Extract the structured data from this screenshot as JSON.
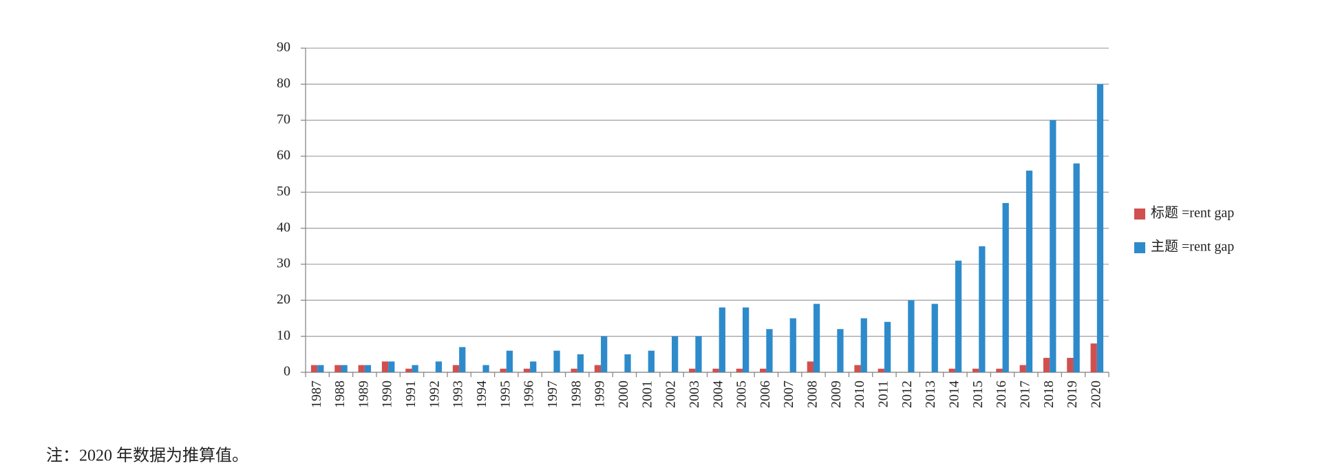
{
  "chart_data": {
    "type": "bar",
    "categories": [
      "1987",
      "1988",
      "1989",
      "1990",
      "1991",
      "1992",
      "1993",
      "1994",
      "1995",
      "1996",
      "1997",
      "1998",
      "1999",
      "2000",
      "2001",
      "2002",
      "2003",
      "2004",
      "2005",
      "2006",
      "2007",
      "2008",
      "2009",
      "2010",
      "2011",
      "2012",
      "2013",
      "2014",
      "2015",
      "2016",
      "2017",
      "2018",
      "2019",
      "2020"
    ],
    "series": [
      {
        "name": "标题 =rent gap",
        "color": "#d0504f",
        "values": [
          2,
          2,
          2,
          3,
          1,
          0,
          2,
          0,
          1,
          1,
          0,
          1,
          2,
          0,
          0,
          0,
          1,
          1,
          1,
          1,
          0,
          3,
          0,
          2,
          1,
          0,
          0,
          1,
          1,
          1,
          2,
          4,
          4,
          8
        ]
      },
      {
        "name": "主题 =rent gap",
        "color": "#2e8bcb",
        "values": [
          2,
          2,
          2,
          3,
          2,
          3,
          7,
          2,
          6,
          3,
          6,
          5,
          10,
          5,
          6,
          10,
          10,
          18,
          18,
          12,
          15,
          19,
          12,
          15,
          14,
          20,
          19,
          31,
          35,
          47,
          56,
          70,
          58,
          80
        ]
      }
    ],
    "ylim": [
      0,
      90
    ],
    "yticks": [
      0,
      10,
      20,
      30,
      40,
      50,
      60,
      70,
      80,
      90
    ],
    "grid": true,
    "legend": "right",
    "note": "注：2020 年数据为推算值。"
  }
}
